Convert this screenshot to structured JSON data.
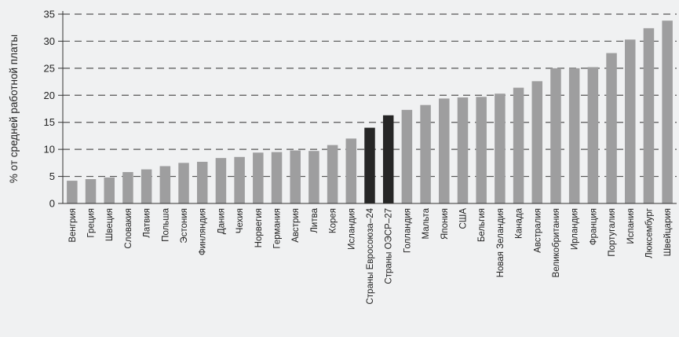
{
  "chart_data": {
    "type": "bar",
    "title": "",
    "xlabel": "",
    "ylabel": "% от средней работной платы",
    "ylim": [
      0,
      35
    ],
    "yticks": [
      0,
      5,
      10,
      15,
      20,
      25,
      30,
      35
    ],
    "grid": "horizontal-dashed",
    "categories": [
      "Венгрия",
      "Греция",
      "Швеция",
      "Словакия",
      "Латвия",
      "Польша",
      "Эстония",
      "Финляндия",
      "Дания",
      "Чехия",
      "Норвегия",
      "Германия",
      "Австрия",
      "Литва",
      "Корея",
      "Исландия",
      "Страны Евросоюза–24",
      "Страны ОЭСР–27",
      "Голландия",
      "Мальта",
      "Япония",
      "США",
      "Бельгия",
      "Новая Зеландия",
      "Канада",
      "Австралия",
      "Великобритания",
      "Ирландия",
      "Франция",
      "Португалия",
      "Испания",
      "Люксембург",
      "Швейцария"
    ],
    "values": [
      4.2,
      4.5,
      4.8,
      5.8,
      6.3,
      6.9,
      7.5,
      7.7,
      8.4,
      8.6,
      9.4,
      9.5,
      9.8,
      9.7,
      10.8,
      12.0,
      14.0,
      16.3,
      17.3,
      18.2,
      19.4,
      19.6,
      19.7,
      20.3,
      21.4,
      22.6,
      25.0,
      25.0,
      25.2,
      27.8,
      30.3,
      32.4,
      33.8
    ],
    "highlighted": [
      "Страны Евросоюза–24",
      "Страны ОЭСР–27"
    ],
    "colors": {
      "bar": "#9e9e9f",
      "highlight": "#262626",
      "grid": "#555555",
      "axis": "#333333"
    }
  }
}
